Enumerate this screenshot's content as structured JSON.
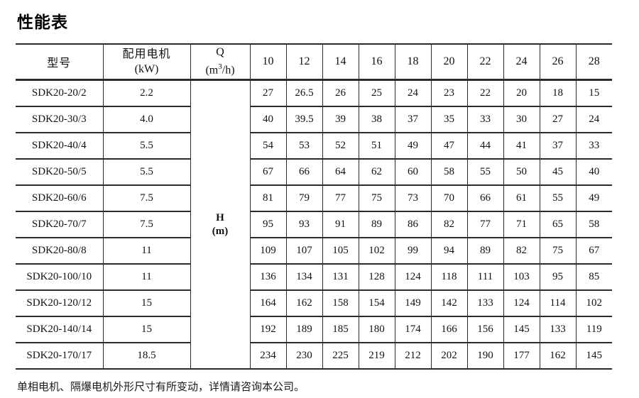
{
  "page": {
    "title": "性能表",
    "footer_note": "单相电机、隔爆电机外形尺寸有所变动，详情请咨询本公司。"
  },
  "table": {
    "headers": {
      "model": "型号",
      "motor_line1": "配用电机",
      "motor_line2": "(kW)",
      "q_symbol": "Q",
      "q_unit_pre": "(m",
      "q_unit_sup": "3",
      "q_unit_post": "/h)"
    },
    "h_column": {
      "symbol": "H",
      "unit": "(m)"
    },
    "flow_headers": [
      "10",
      "12",
      "14",
      "16",
      "18",
      "20",
      "22",
      "24",
      "26",
      "28"
    ],
    "rows": [
      {
        "model": "SDK20-20/2",
        "kw": "2.2",
        "values": [
          "27",
          "26.5",
          "26",
          "25",
          "24",
          "23",
          "22",
          "20",
          "18",
          "15"
        ]
      },
      {
        "model": "SDK20-30/3",
        "kw": "4.0",
        "values": [
          "40",
          "39.5",
          "39",
          "38",
          "37",
          "35",
          "33",
          "30",
          "27",
          "24"
        ]
      },
      {
        "model": "SDK20-40/4",
        "kw": "5.5",
        "values": [
          "54",
          "53",
          "52",
          "51",
          "49",
          "47",
          "44",
          "41",
          "37",
          "33"
        ]
      },
      {
        "model": "SDK20-50/5",
        "kw": "5.5",
        "values": [
          "67",
          "66",
          "64",
          "62",
          "60",
          "58",
          "55",
          "50",
          "45",
          "40"
        ]
      },
      {
        "model": "SDK20-60/6",
        "kw": "7.5",
        "values": [
          "81",
          "79",
          "77",
          "75",
          "73",
          "70",
          "66",
          "61",
          "55",
          "49"
        ]
      },
      {
        "model": "SDK20-70/7",
        "kw": "7.5",
        "values": [
          "95",
          "93",
          "91",
          "89",
          "86",
          "82",
          "77",
          "71",
          "65",
          "58"
        ]
      },
      {
        "model": "SDK20-80/8",
        "kw": "11",
        "values": [
          "109",
          "107",
          "105",
          "102",
          "99",
          "94",
          "89",
          "82",
          "75",
          "67"
        ]
      },
      {
        "model": "SDK20-100/10",
        "kw": "11",
        "values": [
          "136",
          "134",
          "131",
          "128",
          "124",
          "118",
          "111",
          "103",
          "95",
          "85"
        ]
      },
      {
        "model": "SDK20-120/12",
        "kw": "15",
        "values": [
          "164",
          "162",
          "158",
          "154",
          "149",
          "142",
          "133",
          "124",
          "114",
          "102"
        ]
      },
      {
        "model": "SDK20-140/14",
        "kw": "15",
        "values": [
          "192",
          "189",
          "185",
          "180",
          "174",
          "166",
          "156",
          "145",
          "133",
          "119"
        ]
      },
      {
        "model": "SDK20-170/17",
        "kw": "18.5",
        "values": [
          "234",
          "230",
          "225",
          "219",
          "212",
          "202",
          "190",
          "177",
          "162",
          "145"
        ]
      }
    ]
  }
}
